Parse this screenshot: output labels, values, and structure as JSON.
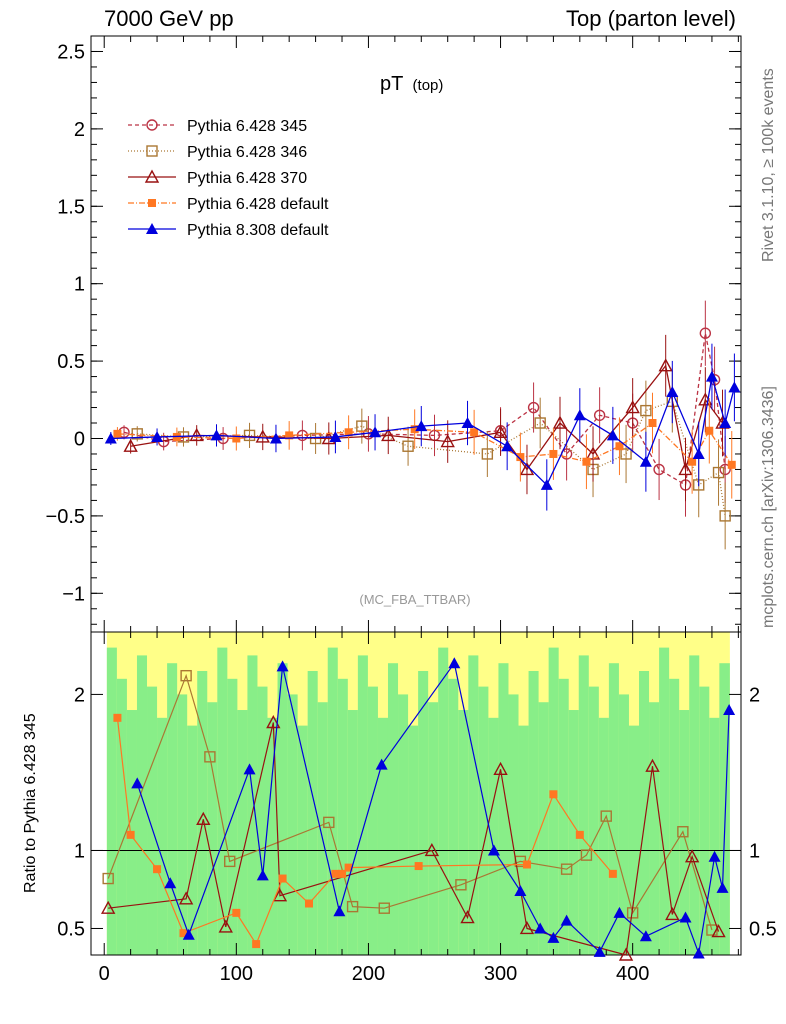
{
  "header": {
    "left": "7000 GeV pp",
    "right": "Top (parton level)"
  },
  "side_labels": {
    "rivet": "Rivet 3.1.10, ≥ 100k events",
    "mcplots": "mcplots.cern.ch [arXiv:1306.3436]"
  },
  "watermark": "(MC_FBA_TTBAR)",
  "chart_data": [
    {
      "type": "line",
      "title": "pT (top)",
      "title_main": "pT",
      "title_sub": "(top)",
      "xlim": [
        -10,
        482
      ],
      "ylim": [
        -1.25,
        2.6
      ],
      "yticks": [
        -1,
        -0.5,
        0,
        0.5,
        1,
        1.5,
        2,
        2.5
      ],
      "ytick_labels": [
        "−1",
        "−0.5",
        "0",
        "0.5",
        "1",
        "1.5",
        "2",
        "2.5"
      ],
      "legend_position": "top-left",
      "series": [
        {
          "name": "Pythia 6.428 345",
          "color": "#bb3344",
          "marker": "open-circle",
          "dash": "4 3",
          "x": [
            15,
            45,
            90,
            150,
            200,
            250,
            300,
            325,
            350,
            375,
            400,
            420,
            440,
            455,
            462,
            470
          ],
          "y": [
            0.04,
            -0.02,
            0.0,
            0.02,
            0.03,
            0.02,
            0.05,
            0.2,
            -0.1,
            0.15,
            0.1,
            -0.2,
            -0.3,
            0.68,
            0.38,
            -0.2
          ]
        },
        {
          "name": "Pythia 6.428 346",
          "color": "#aa7733",
          "marker": "open-square",
          "dash": "1 2",
          "x": [
            25,
            60,
            110,
            160,
            195,
            230,
            290,
            330,
            370,
            395,
            410,
            430,
            450,
            465,
            470
          ],
          "y": [
            0.03,
            0.01,
            0.02,
            0.0,
            0.08,
            -0.05,
            -0.1,
            0.1,
            -0.2,
            -0.1,
            0.18,
            0.24,
            -0.3,
            -0.22,
            -0.5
          ]
        },
        {
          "name": "Pythia 6.428 370",
          "color": "#991111",
          "marker": "open-triangle",
          "dash": "",
          "x": [
            20,
            70,
            120,
            170,
            215,
            260,
            300,
            320,
            345,
            370,
            400,
            425,
            440,
            455,
            468
          ],
          "y": [
            -0.05,
            0.02,
            0.01,
            0.0,
            0.02,
            -0.02,
            0.04,
            -0.2,
            0.1,
            -0.1,
            0.2,
            0.47,
            -0.2,
            0.25,
            0.1
          ]
        },
        {
          "name": "Pythia 6.428 default",
          "color": "#ff7722",
          "marker": "filled-square",
          "dash": "6 2 1 2",
          "x": [
            10,
            55,
            100,
            140,
            185,
            235,
            280,
            315,
            340,
            365,
            390,
            415,
            445,
            458,
            475
          ],
          "y": [
            0.03,
            0.01,
            0.0,
            0.02,
            0.04,
            0.06,
            0.04,
            -0.12,
            -0.1,
            -0.15,
            -0.05,
            0.1,
            -0.15,
            0.05,
            -0.17
          ]
        },
        {
          "name": "Pythia 8.308 default",
          "color": "#0000dd",
          "marker": "filled-triangle",
          "dash": "",
          "x": [
            5,
            40,
            85,
            130,
            175,
            205,
            240,
            275,
            305,
            335,
            360,
            385,
            410,
            430,
            450,
            460,
            470,
            477
          ],
          "y": [
            0.0,
            0.01,
            0.02,
            0.0,
            0.01,
            0.04,
            0.08,
            0.1,
            -0.05,
            -0.3,
            0.15,
            0.02,
            -0.15,
            0.3,
            -0.1,
            0.4,
            0.1,
            0.33
          ]
        }
      ]
    },
    {
      "type": "line",
      "ylabel": "Ratio to Pythia 6.428 345",
      "xlim": [
        -10,
        482
      ],
      "ylim": [
        0.33,
        2.4
      ],
      "yticks": [
        0.5,
        1,
        2
      ],
      "ytick_labels": [
        "0.5",
        "1",
        "2"
      ],
      "xticks": [
        0,
        100,
        200,
        300,
        400
      ],
      "xtick_labels": [
        "0",
        "100",
        "200",
        "300",
        "400"
      ],
      "reference_line": 1,
      "band_colors": [
        "#ffff88",
        "#88ee88"
      ],
      "series": [
        {
          "name": "Pythia 6.428 346",
          "color": "#aa7733",
          "marker": "open-square",
          "x": [
            3,
            62,
            80,
            95,
            170,
            188,
            212,
            270,
            315,
            350,
            365,
            380,
            400,
            438,
            460
          ],
          "y": [
            0.82,
            2.12,
            1.6,
            0.93,
            1.18,
            0.64,
            0.63,
            0.78,
            0.93,
            0.88,
            0.97,
            1.22,
            0.6,
            1.12,
            0.49
          ]
        },
        {
          "name": "Pythia 6.428 370",
          "color": "#991111",
          "marker": "open-triangle",
          "x": [
            3,
            62,
            75,
            92,
            128,
            133,
            248,
            275,
            300,
            320,
            395,
            415,
            430,
            445,
            465
          ],
          "y": [
            0.63,
            0.69,
            1.2,
            0.51,
            1.82,
            0.71,
            1.0,
            0.57,
            1.52,
            0.5,
            0.33,
            1.54,
            0.59,
            0.96,
            0.48
          ]
        },
        {
          "name": "Pythia 6.428 default",
          "color": "#ff7722",
          "marker": "filled-square",
          "x": [
            10,
            20,
            40,
            60,
            100,
            115,
            135,
            155,
            175,
            180,
            185,
            238,
            320,
            340,
            360,
            385
          ],
          "y": [
            1.85,
            1.1,
            0.88,
            0.47,
            0.6,
            0.4,
            0.82,
            0.66,
            0.85,
            0.85,
            0.89,
            0.9,
            0.91,
            1.36,
            1.1,
            0.85
          ]
        },
        {
          "name": "Pythia 8.308 default",
          "color": "#0000dd",
          "marker": "filled-triangle",
          "x": [
            25,
            50,
            64,
            110,
            120,
            135,
            178,
            210,
            265,
            295,
            315,
            330,
            340,
            350,
            375,
            390,
            410,
            440,
            450,
            462,
            468,
            473
          ],
          "y": [
            1.43,
            0.79,
            0.46,
            1.52,
            0.84,
            2.18,
            0.61,
            1.55,
            2.2,
            1.0,
            0.74,
            0.5,
            0.44,
            0.55,
            0.35,
            0.6,
            0.45,
            0.57,
            0.34,
            0.96,
            0.76,
            1.9
          ]
        }
      ]
    }
  ]
}
